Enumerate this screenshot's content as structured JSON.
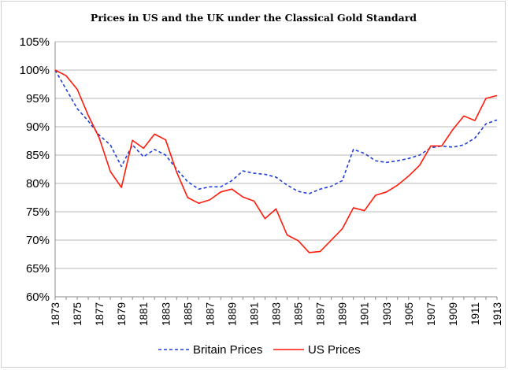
{
  "chart_data": {
    "type": "line",
    "title": "Prices in US and the UK under the Classical Gold Standard",
    "xlabel": "",
    "ylabel": "",
    "x": [
      1873,
      1874,
      1875,
      1876,
      1877,
      1878,
      1879,
      1880,
      1881,
      1882,
      1883,
      1884,
      1885,
      1886,
      1887,
      1888,
      1889,
      1890,
      1891,
      1892,
      1893,
      1894,
      1895,
      1896,
      1897,
      1898,
      1899,
      1900,
      1901,
      1902,
      1903,
      1904,
      1905,
      1906,
      1907,
      1908,
      1909,
      1910,
      1911,
      1912,
      1913
    ],
    "x_tick_labels": [
      "1873",
      "1875",
      "1877",
      "1879",
      "1881",
      "1883",
      "1885",
      "1887",
      "1889",
      "1891",
      "1893",
      "1895",
      "1897",
      "1899",
      "1901",
      "1903",
      "1905",
      "1907",
      "1909",
      "1911",
      "1913"
    ],
    "y_tick_labels": [
      "60%",
      "65%",
      "70%",
      "75%",
      "80%",
      "85%",
      "90%",
      "95%",
      "100%",
      "105%"
    ],
    "ylim": [
      0.6,
      1.05
    ],
    "grid": "horizontal",
    "legend_position": "bottom",
    "series": [
      {
        "name": "Britain Prices",
        "color": "#1f3fd6",
        "style": "dashed",
        "values": [
          1.0,
          0.966,
          0.932,
          0.91,
          0.885,
          0.868,
          0.83,
          0.868,
          0.847,
          0.86,
          0.85,
          0.825,
          0.803,
          0.79,
          0.794,
          0.794,
          0.805,
          0.822,
          0.818,
          0.816,
          0.811,
          0.797,
          0.786,
          0.782,
          0.79,
          0.795,
          0.805,
          0.86,
          0.853,
          0.84,
          0.837,
          0.84,
          0.844,
          0.85,
          0.863,
          0.866,
          0.864,
          0.868,
          0.88,
          0.905,
          0.912
        ]
      },
      {
        "name": "US Prices",
        "color": "#ff1a0a",
        "style": "solid",
        "values": [
          1.0,
          0.99,
          0.966,
          0.92,
          0.88,
          0.821,
          0.793,
          0.876,
          0.862,
          0.887,
          0.877,
          0.82,
          0.775,
          0.765,
          0.771,
          0.785,
          0.79,
          0.776,
          0.769,
          0.738,
          0.755,
          0.709,
          0.699,
          0.678,
          0.68,
          0.7,
          0.72,
          0.757,
          0.752,
          0.779,
          0.785,
          0.797,
          0.813,
          0.832,
          0.866,
          0.866,
          0.895,
          0.919,
          0.911,
          0.95,
          0.955
        ]
      }
    ]
  }
}
